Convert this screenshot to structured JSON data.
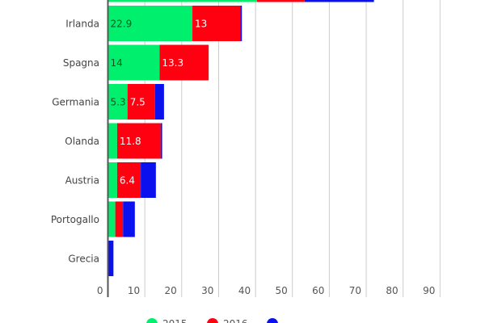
{
  "chart_data": {
    "type": "bar",
    "orientation": "horizontal",
    "stacked": true,
    "categories": [
      "",
      "Irlanda",
      "Spagna",
      "Germania",
      "Olanda",
      "Austria",
      "Portogallo",
      "Grecia"
    ],
    "series": [
      {
        "name": "2015",
        "color": "#00f06e",
        "values": [
          40.4,
          22.9,
          14,
          5.3,
          2.5,
          2.5,
          2.0,
          0
        ],
        "labels": [
          "",
          "22.9",
          "14",
          "5.3",
          "",
          "",
          "",
          ""
        ]
      },
      {
        "name": "2016",
        "color": "#ff0010",
        "values": [
          12.9,
          13,
          13.3,
          7.5,
          11.8,
          6.4,
          2.1,
          0
        ],
        "labels": [
          "",
          "13",
          "13.3",
          "7.5",
          "11.8",
          "6.4",
          "",
          ""
        ]
      },
      {
        "name": "",
        "color": "#0a10ee",
        "values": [
          18.8,
          0.4,
          0,
          2.4,
          0.4,
          4.1,
          3.2,
          1.5
        ],
        "labels": [
          "",
          "",
          "",
          "",
          "",
          "",
          "",
          ""
        ]
      }
    ],
    "xlim": [
      0,
      100
    ],
    "xticks": [
      "0",
      "10",
      "20",
      "30",
      "40",
      "50",
      "60",
      "70",
      "80",
      "90"
    ],
    "grid": true,
    "legend": "bottom"
  }
}
